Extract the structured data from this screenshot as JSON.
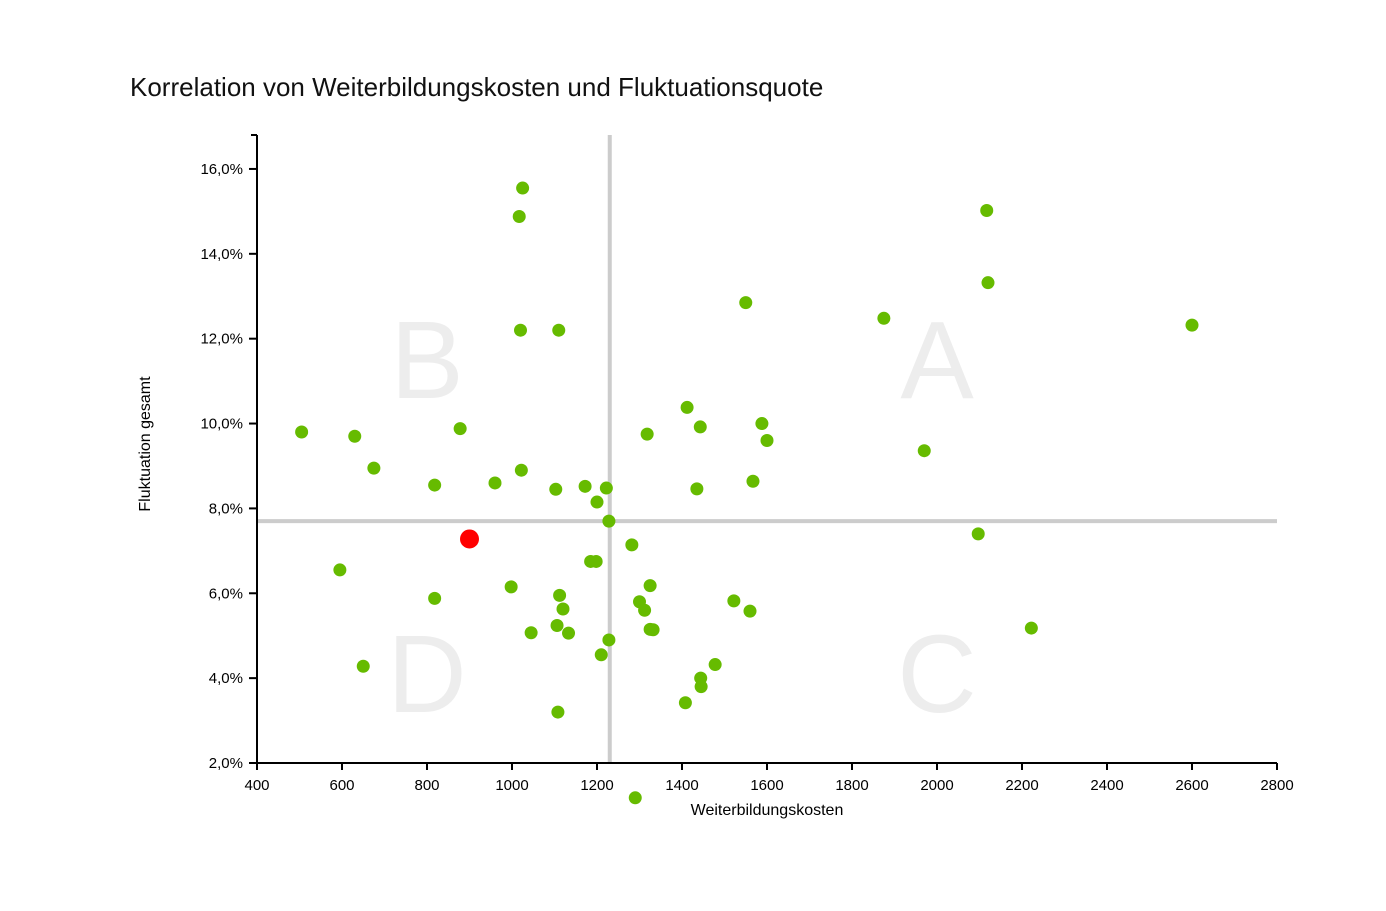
{
  "chart_data": {
    "type": "scatter",
    "title": "Korrelation von Weiterbildungskosten und Fluktuationsquote",
    "xlabel": "Weiterbildungskosten",
    "ylabel": "Fluktuation gesamt",
    "xlim": [
      400,
      2800
    ],
    "ylim": [
      2.0,
      16.8
    ],
    "x_ticks": [
      400,
      600,
      800,
      1000,
      1200,
      1400,
      1600,
      1800,
      2000,
      2200,
      2400,
      2600,
      2800
    ],
    "x_tick_labels": [
      "400",
      "600",
      "800",
      "1000",
      "1200",
      "1400",
      "1600",
      "1800",
      "2000",
      "2200",
      "2400",
      "2600",
      "2800"
    ],
    "y_ticks": [
      2,
      4,
      6,
      8,
      10,
      12,
      14,
      16
    ],
    "y_tick_labels": [
      "2,0%",
      "4,0%",
      "6,0%",
      "8,0%",
      "10,0%",
      "12,0%",
      "14,0%",
      "16,0%"
    ],
    "grid": false,
    "quadrant_lines": {
      "x": 1230,
      "y": 7.7
    },
    "quadrant_labels": [
      {
        "label": "A",
        "x": 2000,
        "y": 11.5
      },
      {
        "label": "B",
        "x": 800,
        "y": 11.5
      },
      {
        "label": "C",
        "x": 2000,
        "y": 4.1
      },
      {
        "label": "D",
        "x": 800,
        "y": 4.1
      }
    ],
    "colors": {
      "points": "#66bb00",
      "highlight": "#ff0000",
      "quadrant_lines": "#cccccc",
      "quadrant_letters": "#ededed"
    },
    "points": [
      [
        1025,
        15.55
      ],
      [
        1017,
        14.88
      ],
      [
        1020,
        12.2
      ],
      [
        1110,
        12.2
      ],
      [
        505,
        9.8
      ],
      [
        630,
        9.7
      ],
      [
        675,
        8.95
      ],
      [
        878,
        9.88
      ],
      [
        818,
        8.55
      ],
      [
        960,
        8.6
      ],
      [
        1022,
        8.9
      ],
      [
        1103,
        8.45
      ],
      [
        1172,
        8.52
      ],
      [
        1200,
        8.15
      ],
      [
        1222,
        8.48
      ],
      [
        1228,
        7.7
      ],
      [
        1318,
        9.75
      ],
      [
        1412,
        10.38
      ],
      [
        1443,
        9.92
      ],
      [
        1435,
        8.46
      ],
      [
        1550,
        12.85
      ],
      [
        1588,
        10.0
      ],
      [
        1600,
        9.6
      ],
      [
        1567,
        8.64
      ],
      [
        1875,
        12.48
      ],
      [
        1970,
        9.36
      ],
      [
        2117,
        15.02
      ],
      [
        2120,
        13.32
      ],
      [
        2600,
        12.32
      ],
      [
        2097,
        7.4
      ],
      [
        2222,
        5.18
      ],
      [
        1282,
        7.14
      ],
      [
        1185,
        6.75
      ],
      [
        1198,
        6.75
      ],
      [
        595,
        6.55
      ],
      [
        650,
        4.28
      ],
      [
        818,
        5.88
      ],
      [
        998,
        6.15
      ],
      [
        1112,
        5.95
      ],
      [
        1120,
        5.63
      ],
      [
        1106,
        5.24
      ],
      [
        1045,
        5.07
      ],
      [
        1133,
        5.06
      ],
      [
        1228,
        4.9
      ],
      [
        1210,
        4.55
      ],
      [
        1300,
        5.8
      ],
      [
        1312,
        5.6
      ],
      [
        1325,
        5.15
      ],
      [
        1332,
        5.14
      ],
      [
        1325,
        6.18
      ],
      [
        1522,
        5.82
      ],
      [
        1560,
        5.58
      ],
      [
        1478,
        4.32
      ],
      [
        1444,
        4.0
      ],
      [
        1445,
        3.8
      ],
      [
        1408,
        3.42
      ],
      [
        1108,
        3.2
      ],
      [
        1290,
        1.18
      ]
    ],
    "highlight_point": [
      900,
      7.28
    ]
  }
}
